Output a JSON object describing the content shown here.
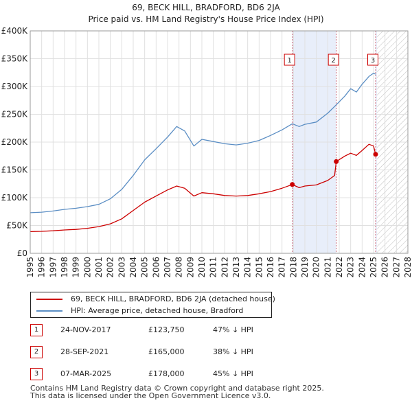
{
  "title_line1": "69, BECK HILL, BRADFORD, BD6 2JA",
  "title_line2": "Price paid vs. HM Land Registry's House Price Index (HPI)",
  "colors": {
    "property": "#cc0000",
    "hpi": "#5b8ec4",
    "shade": "#e8eefa",
    "marker_line": "#cc6677",
    "grid": "#e0e0e0"
  },
  "chart_data": {
    "type": "line",
    "title": "69, BECK HILL, BRADFORD, BD6 2JA — Price paid vs. HM Land Registry's House Price Index (HPI)",
    "xlim": [
      1995,
      2028
    ],
    "ylim": [
      0,
      400000
    ],
    "y_ticks": [
      0,
      50000,
      100000,
      150000,
      200000,
      250000,
      300000,
      350000,
      400000
    ],
    "y_tick_labels": [
      "£0",
      "£50K",
      "£100K",
      "£150K",
      "£200K",
      "£250K",
      "£300K",
      "£350K",
      "£400K"
    ],
    "x_ticks": [
      1995,
      1996,
      1997,
      1998,
      1999,
      2000,
      2001,
      2002,
      2003,
      2004,
      2005,
      2006,
      2007,
      2008,
      2009,
      2010,
      2011,
      2012,
      2013,
      2014,
      2015,
      2016,
      2017,
      2018,
      2019,
      2020,
      2021,
      2022,
      2023,
      2024,
      2025,
      2026,
      2027,
      2028
    ],
    "forecast_hatch_from": 2025.3,
    "series": [
      {
        "name": "69, BECK HILL, BRADFORD, BD6 2JA (detached house)",
        "color": "#cc0000",
        "points": [
          [
            1995.0,
            39000
          ],
          [
            1996.0,
            39500
          ],
          [
            1997.0,
            40500
          ],
          [
            1998.0,
            42000
          ],
          [
            1999.0,
            43000
          ],
          [
            2000.0,
            45000
          ],
          [
            2001.0,
            48000
          ],
          [
            2002.0,
            53000
          ],
          [
            2003.0,
            62000
          ],
          [
            2004.0,
            77000
          ],
          [
            2005.0,
            92000
          ],
          [
            2006.0,
            103000
          ],
          [
            2007.0,
            114000
          ],
          [
            2007.8,
            121000
          ],
          [
            2008.5,
            117000
          ],
          [
            2009.3,
            103000
          ],
          [
            2010.0,
            109000
          ],
          [
            2011.0,
            107000
          ],
          [
            2012.0,
            104000
          ],
          [
            2013.0,
            103000
          ],
          [
            2014.0,
            104000
          ],
          [
            2015.0,
            107000
          ],
          [
            2016.0,
            111000
          ],
          [
            2017.0,
            117000
          ],
          [
            2017.9,
            123750
          ],
          [
            2018.5,
            118000
          ],
          [
            2019.0,
            121000
          ],
          [
            2020.0,
            123000
          ],
          [
            2021.0,
            131000
          ],
          [
            2021.6,
            140000
          ],
          [
            2021.74,
            165000
          ],
          [
            2022.5,
            175000
          ],
          [
            2023.0,
            180000
          ],
          [
            2023.5,
            176000
          ],
          [
            2024.0,
            185000
          ],
          [
            2024.6,
            196000
          ],
          [
            2025.0,
            193000
          ],
          [
            2025.18,
            178000
          ]
        ]
      },
      {
        "name": "HPI: Average price, detached house, Bradford",
        "color": "#5b8ec4",
        "points": [
          [
            1995.0,
            73000
          ],
          [
            1996.0,
            74000
          ],
          [
            1997.0,
            76000
          ],
          [
            1998.0,
            79000
          ],
          [
            1999.0,
            81000
          ],
          [
            2000.0,
            84000
          ],
          [
            2001.0,
            88000
          ],
          [
            2002.0,
            98000
          ],
          [
            2003.0,
            115000
          ],
          [
            2004.0,
            140000
          ],
          [
            2005.0,
            168000
          ],
          [
            2006.0,
            188000
          ],
          [
            2007.0,
            209000
          ],
          [
            2007.8,
            228000
          ],
          [
            2008.5,
            220000
          ],
          [
            2009.3,
            193000
          ],
          [
            2010.0,
            205000
          ],
          [
            2011.0,
            201000
          ],
          [
            2012.0,
            197000
          ],
          [
            2013.0,
            195000
          ],
          [
            2014.0,
            198000
          ],
          [
            2015.0,
            203000
          ],
          [
            2016.0,
            212000
          ],
          [
            2017.0,
            222000
          ],
          [
            2017.9,
            233000
          ],
          [
            2018.5,
            228000
          ],
          [
            2019.0,
            232000
          ],
          [
            2020.0,
            236000
          ],
          [
            2021.0,
            252000
          ],
          [
            2021.74,
            267000
          ],
          [
            2022.5,
            283000
          ],
          [
            2023.0,
            296000
          ],
          [
            2023.5,
            290000
          ],
          [
            2024.0,
            304000
          ],
          [
            2024.6,
            318000
          ],
          [
            2025.0,
            324000
          ],
          [
            2025.18,
            322000
          ]
        ]
      }
    ],
    "sales": [
      {
        "label": "1",
        "x": 2017.9,
        "value": 123750
      },
      {
        "label": "2",
        "x": 2021.74,
        "value": 165000
      },
      {
        "label": "3",
        "x": 2025.18,
        "value": 178000
      }
    ]
  },
  "legend": {
    "property_label": "69, BECK HILL, BRADFORD, BD6 2JA (detached house)",
    "hpi_label": "HPI: Average price, detached house, Bradford"
  },
  "transactions": [
    {
      "num": "1",
      "date": "24-NOV-2017",
      "price": "£123,750",
      "hpi": "47% ↓ HPI"
    },
    {
      "num": "2",
      "date": "28-SEP-2021",
      "price": "£165,000",
      "hpi": "38% ↓ HPI"
    },
    {
      "num": "3",
      "date": "07-MAR-2025",
      "price": "£178,000",
      "hpi": "45% ↓ HPI"
    }
  ],
  "footer": {
    "line1": "Contains HM Land Registry data © Crown copyright and database right 2025.",
    "line2": "This data is licensed under the Open Government Licence v3.0."
  }
}
